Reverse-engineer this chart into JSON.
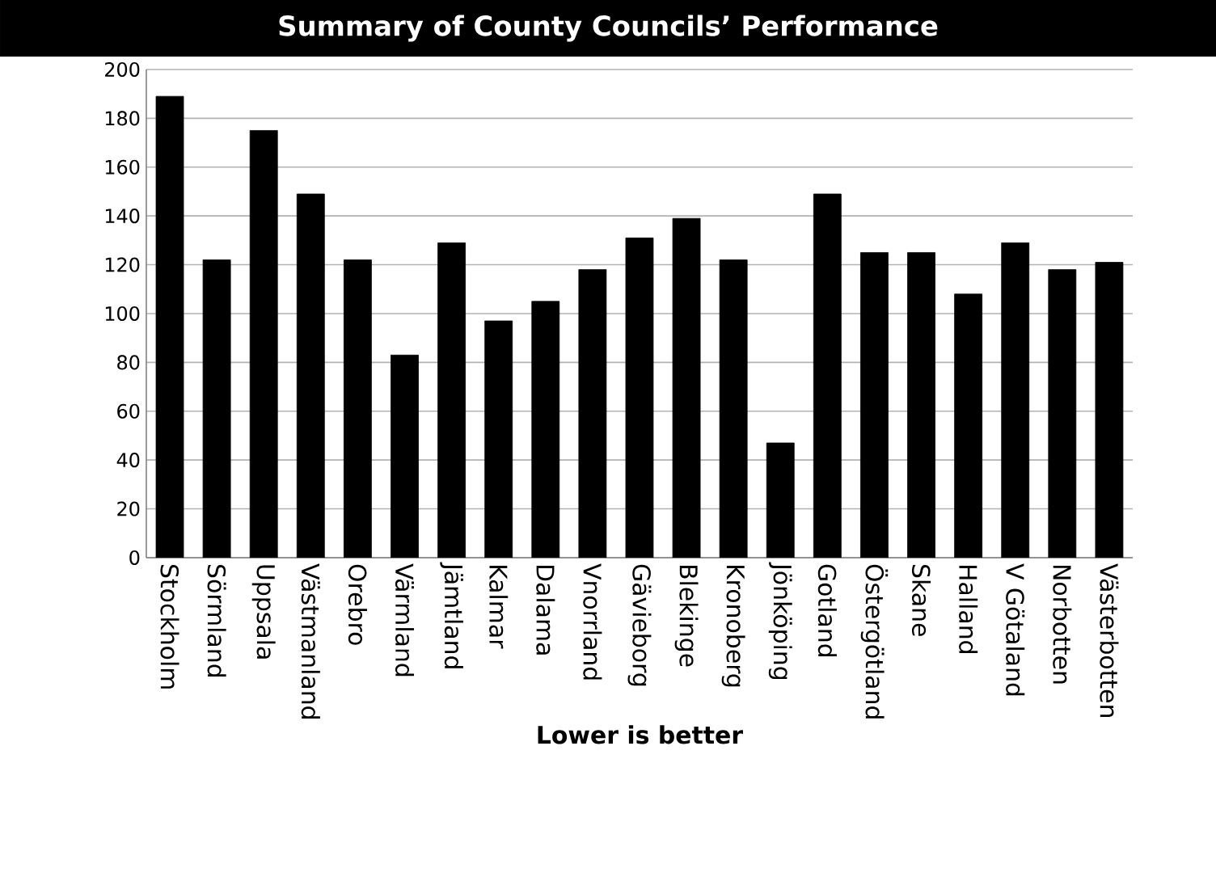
{
  "chart_data": {
    "type": "bar",
    "title": "Summary of County Councils’ Performance",
    "xlabel": "Lower is better",
    "categories": [
      "Stockholm",
      "Sörmland",
      "Uppsala",
      "Västmanland",
      "Orebro",
      "Värmland",
      "Jämtland",
      "Kalmar",
      "Dalama",
      "Vnorrland",
      "Gävieborg",
      "Blekinge",
      "Kronoberg",
      "Jönköping",
      "Gotland",
      "Östergötland",
      "Skane",
      "Halland",
      "V Götaland",
      "Norbotten",
      "Västerbotten"
    ],
    "values": [
      189,
      122,
      175,
      149,
      122,
      83,
      129,
      97,
      105,
      118,
      131,
      139,
      122,
      47,
      149,
      125,
      125,
      108,
      129,
      118,
      121
    ],
    "color": "#000000",
    "ylim": [
      0,
      200
    ],
    "yticks": [
      0,
      20,
      40,
      60,
      80,
      100,
      120,
      140,
      160,
      180,
      200
    ],
    "grid": "y"
  }
}
